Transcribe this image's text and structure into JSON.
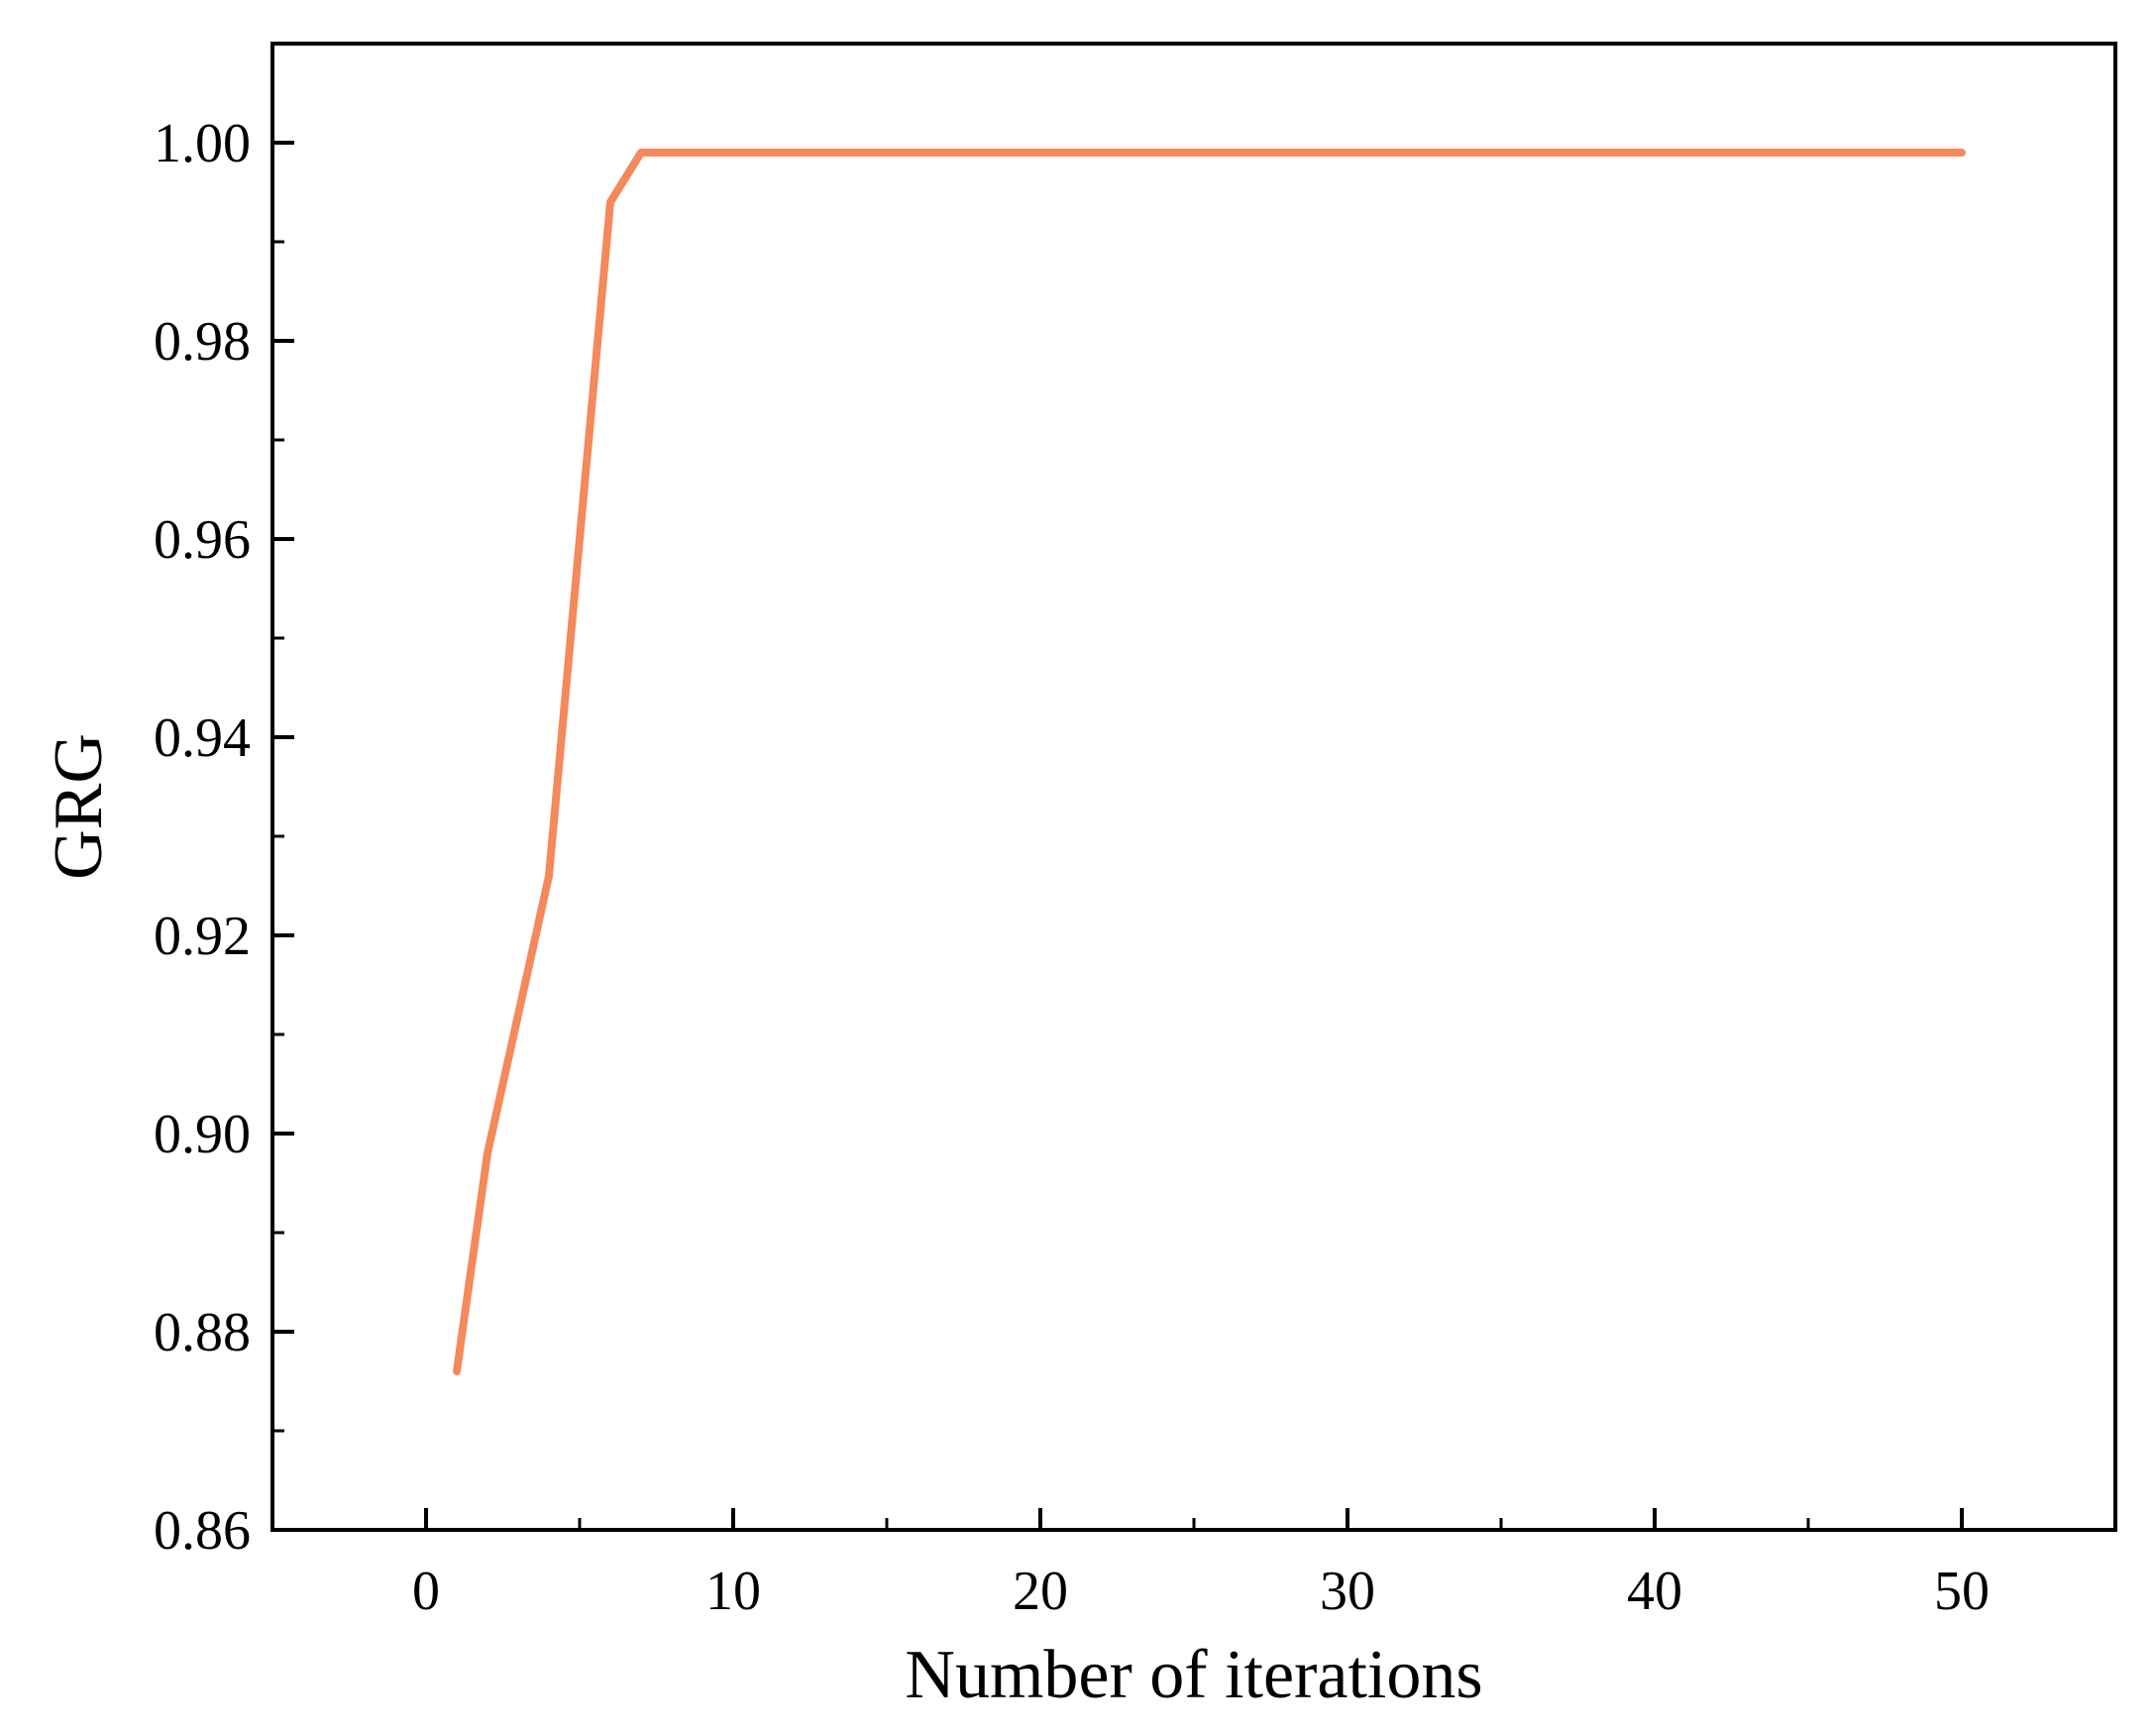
{
  "chart_data": {
    "type": "line",
    "title": "",
    "xlabel": "Number of iterations",
    "ylabel": "GRG",
    "xlim": [
      -5,
      55
    ],
    "ylim": [
      0.86,
      1.01
    ],
    "x_ticks": [
      0,
      10,
      20,
      30,
      40,
      50
    ],
    "x_tick_labels": [
      "0",
      "10",
      "20",
      "30",
      "40",
      "50"
    ],
    "x_minor_ticks": [
      5,
      15,
      25,
      35,
      45
    ],
    "y_ticks": [
      0.86,
      0.88,
      0.9,
      0.92,
      0.94,
      0.96,
      0.98,
      1.0
    ],
    "y_tick_labels": [
      "0.86",
      "0.88",
      "0.90",
      "0.92",
      "0.94",
      "0.96",
      "0.98",
      "1.00"
    ],
    "y_minor_ticks": [
      0.87,
      0.89,
      0.91,
      0.93,
      0.95,
      0.97,
      0.99
    ],
    "grid": false,
    "legend": "none",
    "series": [
      {
        "color": "#f4895c",
        "x": [
          1,
          2,
          3,
          4,
          5,
          6,
          7,
          8,
          9,
          10,
          11,
          12,
          13,
          14,
          15,
          16,
          17,
          18,
          19,
          20,
          21,
          22,
          23,
          24,
          25,
          26,
          27,
          28,
          29,
          30,
          31,
          32,
          33,
          34,
          35,
          36,
          37,
          38,
          39,
          40,
          41,
          42,
          43,
          44,
          45,
          46,
          47,
          48,
          49,
          50
        ],
        "y": [
          0.876,
          0.898,
          0.912,
          0.926,
          0.96,
          0.994,
          0.999,
          0.999,
          0.999,
          0.999,
          0.999,
          0.999,
          0.999,
          0.999,
          0.999,
          0.999,
          0.999,
          0.999,
          0.999,
          0.999,
          0.999,
          0.999,
          0.999,
          0.999,
          0.999,
          0.999,
          0.999,
          0.999,
          0.999,
          0.999,
          0.999,
          0.999,
          0.999,
          0.999,
          0.999,
          0.999,
          0.999,
          0.999,
          0.999,
          0.999,
          0.999,
          0.999,
          0.999,
          0.999,
          0.999,
          0.999,
          0.999,
          0.999,
          0.999,
          0.999
        ]
      }
    ]
  }
}
